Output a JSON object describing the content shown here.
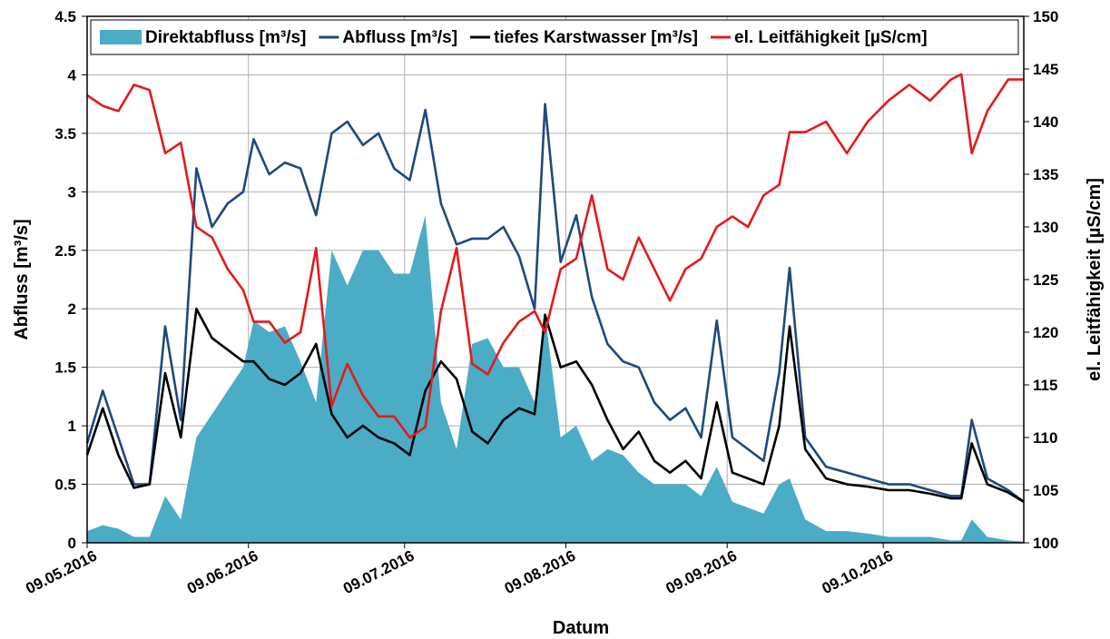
{
  "chart_data": {
    "type": "line",
    "x_label": "Datum",
    "y_label": "Abfluss [m³/s]",
    "y2_label": "el. Leitfähigkeit [µS/cm]",
    "x": [
      "09.05.2016",
      "12.05.2016",
      "15.05.2016",
      "18.05.2016",
      "21.05.2016",
      "24.05.2016",
      "27.05.2016",
      "30.05.2016",
      "02.06.2016",
      "05.06.2016",
      "08.06.2016",
      "10.06.2016",
      "13.06.2016",
      "16.06.2016",
      "19.06.2016",
      "22.06.2016",
      "25.06.2016",
      "28.06.2016",
      "01.07.2016",
      "04.07.2016",
      "07.07.2016",
      "10.07.2016",
      "13.07.2016",
      "16.07.2016",
      "19.07.2016",
      "22.07.2016",
      "25.07.2016",
      "28.07.2016",
      "31.07.2016",
      "03.08.2016",
      "05.08.2016",
      "08.08.2016",
      "11.08.2016",
      "14.08.2016",
      "17.08.2016",
      "20.08.2016",
      "23.08.2016",
      "26.08.2016",
      "29.08.2016",
      "01.09.2016",
      "04.09.2016",
      "07.09.2016",
      "10.09.2016",
      "13.09.2016",
      "16.09.2016",
      "19.09.2016",
      "21.09.2016",
      "24.09.2016",
      "28.09.2016",
      "02.10.2016",
      "06.10.2016",
      "10.10.2016",
      "14.10.2016",
      "18.10.2016",
      "22.10.2016",
      "24.10.2016",
      "26.10.2016",
      "29.10.2016",
      "02.11.2016",
      "05.11.2016"
    ],
    "series": [
      {
        "name": "Direktabfluss [m³/s]",
        "type": "area",
        "color": "#4bacc6",
        "axis": "y",
        "values": [
          0.1,
          0.15,
          0.12,
          0.05,
          0.05,
          0.4,
          0.2,
          0.9,
          1.1,
          1.3,
          1.5,
          1.9,
          1.8,
          1.85,
          1.55,
          1.2,
          2.5,
          2.2,
          2.5,
          2.5,
          2.3,
          2.3,
          2.8,
          1.2,
          0.8,
          1.7,
          1.75,
          1.5,
          1.5,
          1.2,
          1.95,
          0.9,
          1.0,
          0.7,
          0.8,
          0.75,
          0.6,
          0.5,
          0.5,
          0.5,
          0.4,
          0.65,
          0.35,
          0.3,
          0.25,
          0.5,
          0.55,
          0.2,
          0.1,
          0.1,
          0.08,
          0.05,
          0.05,
          0.05,
          0.02,
          0.02,
          0.2,
          0.05,
          0.02,
          0.01
        ]
      },
      {
        "name": "Abfluss [m³/s]",
        "type": "line",
        "color": "#1f497d",
        "axis": "y",
        "values": [
          0.85,
          1.3,
          0.9,
          0.5,
          0.5,
          1.85,
          1.05,
          3.2,
          2.7,
          2.9,
          3.0,
          3.45,
          3.15,
          3.25,
          3.2,
          2.8,
          3.5,
          3.6,
          3.4,
          3.5,
          3.2,
          3.1,
          3.7,
          2.9,
          2.55,
          2.6,
          2.6,
          2.7,
          2.45,
          2.0,
          3.75,
          2.4,
          2.8,
          2.1,
          1.7,
          1.55,
          1.5,
          1.2,
          1.05,
          1.15,
          0.9,
          1.9,
          0.9,
          0.8,
          0.7,
          1.45,
          2.35,
          0.9,
          0.65,
          0.6,
          0.55,
          0.5,
          0.5,
          0.45,
          0.4,
          0.4,
          1.05,
          0.55,
          0.45,
          0.35
        ]
      },
      {
        "name": "tiefes Karstwasser [m³/s]",
        "type": "line",
        "color": "#000000",
        "axis": "y",
        "values": [
          0.75,
          1.15,
          0.75,
          0.47,
          0.5,
          1.45,
          0.9,
          2.0,
          1.75,
          1.65,
          1.55,
          1.55,
          1.4,
          1.35,
          1.45,
          1.7,
          1.1,
          0.9,
          1.0,
          0.9,
          0.85,
          0.75,
          1.3,
          1.55,
          1.4,
          0.95,
          0.85,
          1.05,
          1.15,
          1.1,
          1.95,
          1.5,
          1.55,
          1.35,
          1.05,
          0.8,
          0.95,
          0.7,
          0.6,
          0.7,
          0.55,
          1.2,
          0.6,
          0.55,
          0.5,
          1.0,
          1.85,
          0.8,
          0.55,
          0.5,
          0.48,
          0.45,
          0.45,
          0.42,
          0.38,
          0.38,
          0.85,
          0.5,
          0.43,
          0.35
        ]
      },
      {
        "name": "el. Leitfähigkeit [µS/cm]",
        "type": "line",
        "color": "#e31a1c",
        "axis": "y2",
        "values": [
          142.5,
          141.5,
          141,
          143.5,
          143,
          137,
          138,
          130,
          129,
          126,
          124,
          121,
          121,
          119,
          120,
          128,
          113,
          117,
          114,
          112,
          112,
          110,
          111,
          122,
          128,
          117,
          116,
          119,
          121,
          122,
          120,
          126,
          127,
          133,
          126,
          125,
          129,
          126,
          123,
          126,
          127,
          130,
          131,
          130,
          133,
          134,
          139,
          139,
          140,
          137,
          140,
          142,
          143.5,
          142,
          144,
          144.5,
          137,
          141,
          144,
          144
        ]
      }
    ],
    "xlim": [
      "09.05.2016",
      "05.11.2016"
    ],
    "xticks": [
      "09.05.2016",
      "09.06.2016",
      "09.07.2016",
      "09.08.2016",
      "09.09.2016",
      "09.10.2016"
    ],
    "ylim": [
      0,
      4.5
    ],
    "yticks": [
      0,
      0.5,
      1,
      1.5,
      2,
      2.5,
      3,
      3.5,
      4,
      4.5
    ],
    "y2lim": [
      100,
      150
    ],
    "y2ticks": [
      100,
      105,
      110,
      115,
      120,
      125,
      130,
      135,
      140,
      145,
      150
    ],
    "grid": true,
    "legend": "top"
  }
}
